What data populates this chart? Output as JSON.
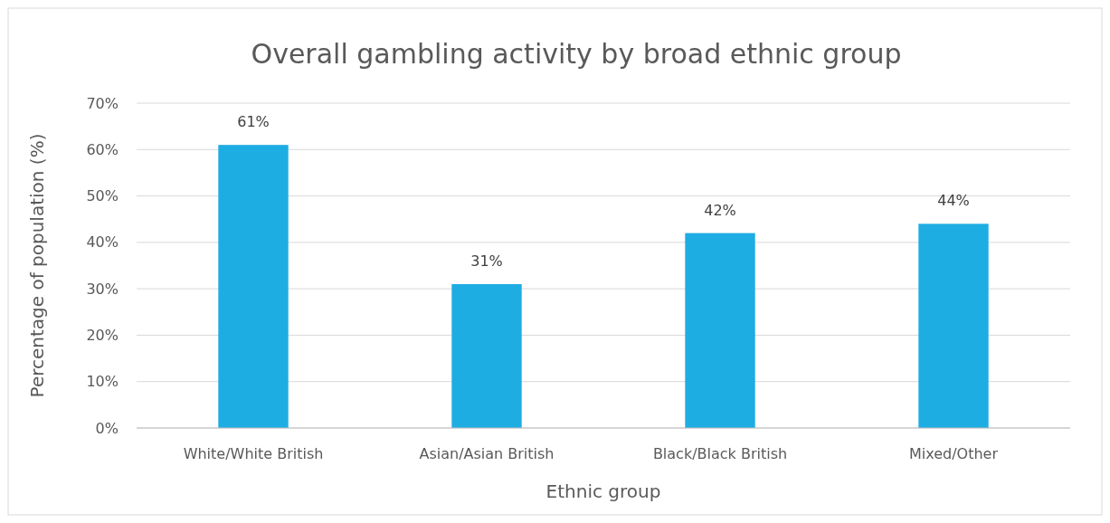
{
  "chart_data": {
    "type": "bar",
    "title": "Overall gambling activity by broad ethnic group",
    "xlabel": "Ethnic group",
    "ylabel": "Percentage of population (%)",
    "categories": [
      "White/White British",
      "Asian/Asian British",
      "Black/Black British",
      "Mixed/Other"
    ],
    "values": [
      61,
      31,
      42,
      44
    ],
    "color": "#1eade3",
    "value_labels": [
      "61%",
      "31%",
      "42%",
      "44%"
    ],
    "ylim": [
      0,
      70
    ],
    "yticks": [
      {
        "value": 0,
        "label": "0%"
      },
      {
        "value": 10,
        "label": "10%"
      },
      {
        "value": 20,
        "label": "20%"
      },
      {
        "value": 30,
        "label": "30%"
      },
      {
        "value": 40,
        "label": "40%"
      },
      {
        "value": 50,
        "label": "50%"
      },
      {
        "value": 60,
        "label": "60%"
      },
      {
        "value": 70,
        "label": "70%"
      }
    ],
    "grid": "y"
  }
}
